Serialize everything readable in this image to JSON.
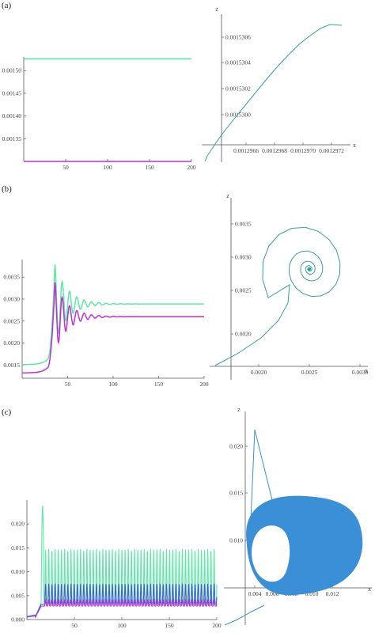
{
  "panels": [
    {
      "label": "(a)",
      "time_series": {
        "type": "line",
        "x_ticks": [
          "50",
          "100",
          "150",
          "200"
        ],
        "y_ticks": [
          "0.00150",
          "0.00145",
          "0.00140",
          "0.00135"
        ],
        "xlim": [
          0,
          200
        ],
        "ylim": [
          0.0013,
          0.00153
        ],
        "series": [
          {
            "color": "#5ee8a8",
            "points": [
              [
                0,
                0.001526
              ],
              [
                200,
                0.001526
              ]
            ]
          },
          {
            "color": "#c030d0",
            "points": [
              [
                0,
                0.0013
              ],
              [
                200,
                0.0013
              ]
            ]
          }
        ]
      },
      "phase": {
        "type": "line",
        "x_ticks": [
          "0.0012966",
          "0.0012968",
          "0.0012970",
          "0.0012972"
        ],
        "y_ticks": [
          "0.0015306",
          "0.0015304",
          "0.0015302",
          "0.0015300"
        ],
        "x_axis_label": "x",
        "y_axis_label": "z",
        "color": "#3a9d9d"
      }
    },
    {
      "label": "(b)",
      "time_series": {
        "type": "line",
        "x_ticks": [
          "50",
          "100",
          "150",
          "200"
        ],
        "y_ticks": [
          "0.0035",
          "0.0030",
          "0.0025",
          "0.0020",
          "0.0015"
        ],
        "xlim": [
          0,
          200
        ],
        "ylim": [
          0.0012,
          0.0039
        ],
        "series": [
          {
            "color": "#5ee8a8",
            "final_value": 0.00289,
            "initial_value": 0.00151
          },
          {
            "color": "#c030d0",
            "final_value": 0.0026,
            "initial_value": 0.00132
          }
        ]
      },
      "phase": {
        "type": "line",
        "x_ticks": [
          "0.0020",
          "0.0025",
          "0.0030"
        ],
        "y_ticks": [
          "0.0035",
          "0.0030",
          "0.0025",
          "0.0020"
        ],
        "x_axis_label": "x",
        "y_axis_label": "z",
        "color": "#3a9d9d",
        "fixed_point": [
          0.00262,
          0.00289
        ]
      }
    },
    {
      "label": "(c)",
      "time_series": {
        "type": "line",
        "x_ticks": [
          "50",
          "100",
          "150",
          "200"
        ],
        "y_ticks": [
          "0.020",
          "0.015",
          "0.010",
          "0.005",
          "0.000"
        ],
        "xlim": [
          0,
          200
        ],
        "ylim": [
          0,
          0.025
        ],
        "series": [
          {
            "color": "#5ee8a8",
            "peak": 0.0148,
            "trough": 0.0035
          },
          {
            "color": "#4060e0",
            "peak": 0.0075,
            "trough": 0.0032
          },
          {
            "color": "#c030d0",
            "peak": 0.0042,
            "trough": 0.0028
          }
        ]
      },
      "phase": {
        "type": "line",
        "x_ticks": [
          "0.004",
          "0.006",
          "0.008",
          "0.010",
          "0.012"
        ],
        "y_ticks": [
          "0.020",
          "0.015",
          "0.010",
          "0.005"
        ],
        "x_axis_label": "x",
        "y_axis_label": "z",
        "color": "#3a8fd6"
      }
    }
  ]
}
